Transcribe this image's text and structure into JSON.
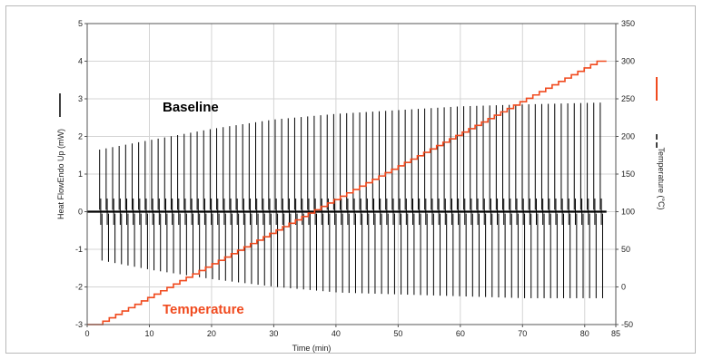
{
  "chart_data": {
    "type": "line",
    "xlabel": "Time (min)",
    "ylabel_left": "Heat FlowEndo Up (mW)",
    "ylabel_right": "Temperature (°C)",
    "xlim": [
      0,
      85
    ],
    "ylim_left": [
      -3,
      5
    ],
    "ylim_right": [
      -50,
      350
    ],
    "x_ticks": [
      "0",
      "10",
      "20",
      "30",
      "40",
      "50",
      "60",
      "70",
      "80",
      "85"
    ],
    "y_left_ticks": [
      "-3",
      "-2",
      "-1",
      "0",
      "1",
      "2",
      "3",
      "4",
      "5"
    ],
    "y_right_ticks": [
      "-50",
      "0",
      "50",
      "100",
      "150",
      "200",
      "250",
      "300",
      "350"
    ],
    "grid": true,
    "annotations": [
      {
        "text": "Baseline",
        "color": "#000000"
      },
      {
        "text": "Temperature",
        "color": "#f04a1e"
      }
    ],
    "series": [
      {
        "axis": "left",
        "color": "#000000",
        "style": "periodic-spikes",
        "baseline": 0,
        "spike_x_start": 2,
        "spike_x_end": 82.5,
        "spike_count": 78,
        "upper_envelope": [
          [
            2,
            1.65
          ],
          [
            10,
            1.9
          ],
          [
            20,
            2.2
          ],
          [
            30,
            2.45
          ],
          [
            40,
            2.6
          ],
          [
            50,
            2.7
          ],
          [
            60,
            2.8
          ],
          [
            70,
            2.85
          ],
          [
            82.5,
            2.9
          ]
        ],
        "lower_envelope": [
          [
            2,
            -1.3
          ],
          [
            10,
            -1.55
          ],
          [
            20,
            -1.8
          ],
          [
            30,
            -2.0
          ],
          [
            40,
            -2.15
          ],
          [
            50,
            -2.2
          ],
          [
            60,
            -2.25
          ],
          [
            70,
            -2.3
          ],
          [
            82.5,
            -2.3
          ]
        ]
      },
      {
        "axis": "right",
        "color": "#f04a1e",
        "style": "step-ramp",
        "points": [
          [
            0,
            -50
          ],
          [
            2,
            -50
          ],
          [
            82.5,
            300
          ],
          [
            83.5,
            300
          ]
        ]
      }
    ]
  }
}
